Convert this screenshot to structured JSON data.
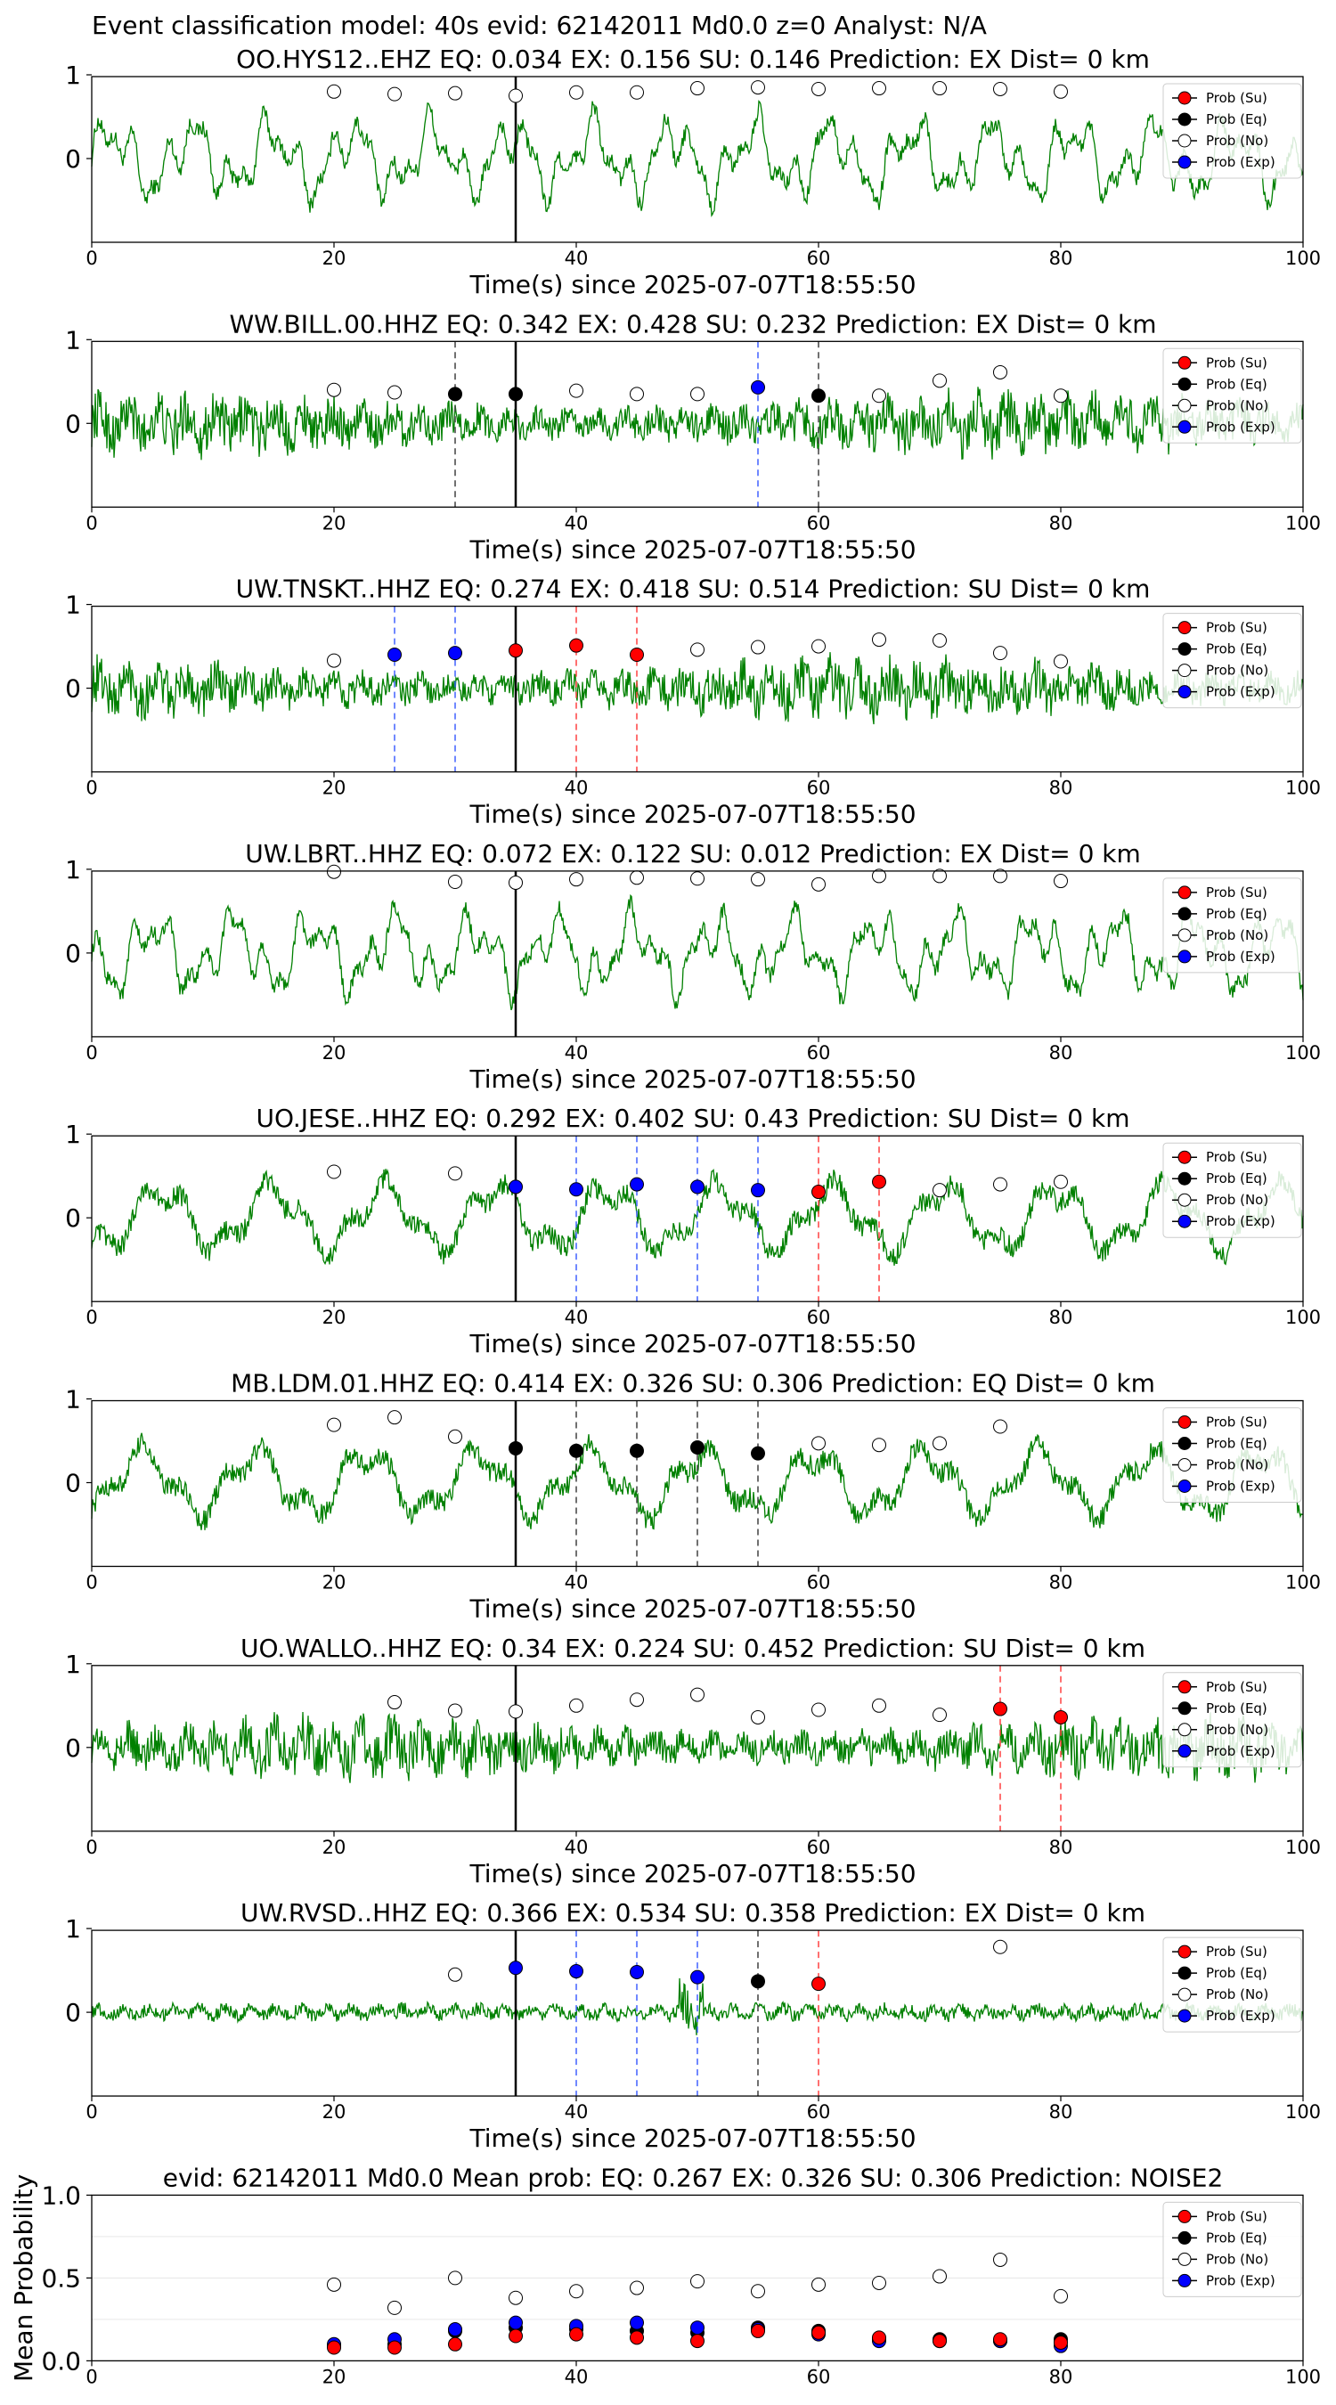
{
  "suptitle": "Event classification model: 40s evid: 62142011 Md0.0 z=0 Analyst: N/A",
  "legend": [
    {
      "label": "Prob (Su)",
      "fill": "#ff0000"
    },
    {
      "label": "Prob (Eq)",
      "fill": "#000000"
    },
    {
      "label": "Prob (No)",
      "fill": "#ffffff"
    },
    {
      "label": "Prob (Exp)",
      "fill": "#0000ff"
    }
  ],
  "colors": {
    "waveform": "#008000",
    "su": "#ff0000",
    "eq": "#000000",
    "no": "#ffffff",
    "exp": "#0000ff",
    "dashed_su": "#ff4040",
    "dashed_exp": "#4060ff",
    "dashed_eq": "#404040"
  },
  "chart_data": [
    {
      "type": "scatter",
      "title": "OO.HYS12..EHZ   EQ: 0.034  EX: 0.156  SU: 0.146   Prediction: EX    Dist= 0 km",
      "xlabel": "Time(s) since 2025-07-07T18:55:50",
      "xlim": [
        0,
        100
      ],
      "xticks": [
        "0",
        "20",
        "40",
        "60",
        "80",
        "100"
      ],
      "yticks": [
        "1",
        "0"
      ],
      "onset_time": 35,
      "waveform_style": "smooth",
      "picks": [],
      "probability_points": [
        {
          "time": 20,
          "class": "No",
          "value": 0.8
        },
        {
          "time": 25,
          "class": "No",
          "value": 0.77
        },
        {
          "time": 30,
          "class": "No",
          "value": 0.78
        },
        {
          "time": 35,
          "class": "No",
          "value": 0.75
        },
        {
          "time": 40,
          "class": "No",
          "value": 0.79
        },
        {
          "time": 45,
          "class": "No",
          "value": 0.79
        },
        {
          "time": 50,
          "class": "No",
          "value": 0.84
        },
        {
          "time": 55,
          "class": "No",
          "value": 0.85
        },
        {
          "time": 60,
          "class": "No",
          "value": 0.83
        },
        {
          "time": 65,
          "class": "No",
          "value": 0.84
        },
        {
          "time": 70,
          "class": "No",
          "value": 0.84
        },
        {
          "time": 75,
          "class": "No",
          "value": 0.83
        },
        {
          "time": 80,
          "class": "No",
          "value": 0.8
        }
      ]
    },
    {
      "type": "scatter",
      "title": "WW.BILL.00.HHZ   EQ: 0.342  EX: 0.428  SU: 0.232   Prediction: EX    Dist= 0 km",
      "xlabel": "Time(s) since 2025-07-07T18:55:50",
      "xlim": [
        0,
        100
      ],
      "xticks": [
        "0",
        "20",
        "40",
        "60",
        "80",
        "100"
      ],
      "yticks": [
        "1",
        "0"
      ],
      "onset_time": 35,
      "waveform_style": "dense",
      "picks": [
        {
          "time": 30,
          "class": "Eq"
        },
        {
          "time": 55,
          "class": "Exp"
        },
        {
          "time": 60,
          "class": "Eq"
        }
      ],
      "probability_points": [
        {
          "time": 20,
          "class": "No",
          "value": 0.4
        },
        {
          "time": 25,
          "class": "No",
          "value": 0.37
        },
        {
          "time": 30,
          "class": "Eq",
          "value": 0.35
        },
        {
          "time": 35,
          "class": "Eq",
          "value": 0.35
        },
        {
          "time": 40,
          "class": "No",
          "value": 0.39
        },
        {
          "time": 45,
          "class": "No",
          "value": 0.35
        },
        {
          "time": 50,
          "class": "No",
          "value": 0.35
        },
        {
          "time": 55,
          "class": "Exp",
          "value": 0.43
        },
        {
          "time": 60,
          "class": "Eq",
          "value": 0.33
        },
        {
          "time": 65,
          "class": "No",
          "value": 0.33
        },
        {
          "time": 70,
          "class": "No",
          "value": 0.51
        },
        {
          "time": 75,
          "class": "No",
          "value": 0.61
        },
        {
          "time": 80,
          "class": "No",
          "value": 0.33
        }
      ]
    },
    {
      "type": "scatter",
      "title": "UW.TNSKT..HHZ   EQ: 0.274  EX: 0.418  SU: 0.514   Prediction: SU    Dist= 0 km",
      "xlabel": "Time(s) since 2025-07-07T18:55:50",
      "xlim": [
        0,
        100
      ],
      "xticks": [
        "0",
        "20",
        "40",
        "60",
        "80",
        "100"
      ],
      "yticks": [
        "1",
        "0"
      ],
      "onset_time": 35,
      "waveform_style": "dense",
      "picks": [
        {
          "time": 25,
          "class": "Exp"
        },
        {
          "time": 30,
          "class": "Exp"
        },
        {
          "time": 40,
          "class": "Su"
        },
        {
          "time": 45,
          "class": "Su"
        }
      ],
      "probability_points": [
        {
          "time": 20,
          "class": "No",
          "value": 0.33
        },
        {
          "time": 25,
          "class": "Exp",
          "value": 0.4
        },
        {
          "time": 30,
          "class": "Exp",
          "value": 0.42
        },
        {
          "time": 35,
          "class": "Su",
          "value": 0.45
        },
        {
          "time": 40,
          "class": "Su",
          "value": 0.51
        },
        {
          "time": 45,
          "class": "Su",
          "value": 0.4
        },
        {
          "time": 50,
          "class": "No",
          "value": 0.46
        },
        {
          "time": 55,
          "class": "No",
          "value": 0.49
        },
        {
          "time": 60,
          "class": "No",
          "value": 0.5
        },
        {
          "time": 65,
          "class": "No",
          "value": 0.58
        },
        {
          "time": 70,
          "class": "No",
          "value": 0.57
        },
        {
          "time": 75,
          "class": "No",
          "value": 0.42
        },
        {
          "time": 80,
          "class": "No",
          "value": 0.32
        }
      ]
    },
    {
      "type": "scatter",
      "title": "UW.LBRT..HHZ   EQ: 0.072  EX: 0.122  SU: 0.012   Prediction: EX    Dist= 0 km",
      "xlabel": "Time(s) since 2025-07-07T18:55:50",
      "xlim": [
        0,
        100
      ],
      "xticks": [
        "0",
        "20",
        "40",
        "60",
        "80",
        "100"
      ],
      "yticks": [
        "1",
        "0"
      ],
      "onset_time": 35,
      "waveform_style": "smooth",
      "picks": [],
      "probability_points": [
        {
          "time": 20,
          "class": "No",
          "value": 0.97
        },
        {
          "time": 30,
          "class": "No",
          "value": 0.85
        },
        {
          "time": 35,
          "class": "No",
          "value": 0.84
        },
        {
          "time": 40,
          "class": "No",
          "value": 0.88
        },
        {
          "time": 45,
          "class": "No",
          "value": 0.9
        },
        {
          "time": 50,
          "class": "No",
          "value": 0.89
        },
        {
          "time": 55,
          "class": "No",
          "value": 0.88
        },
        {
          "time": 60,
          "class": "No",
          "value": 0.82
        },
        {
          "time": 65,
          "class": "No",
          "value": 0.92
        },
        {
          "time": 70,
          "class": "No",
          "value": 0.92
        },
        {
          "time": 75,
          "class": "No",
          "value": 0.92
        },
        {
          "time": 80,
          "class": "No",
          "value": 0.86
        }
      ]
    },
    {
      "type": "scatter",
      "title": "UO.JESE..HHZ   EQ: 0.292  EX: 0.402  SU: 0.43   Prediction: SU    Dist= 0 km",
      "xlabel": "Time(s) since 2025-07-07T18:55:50",
      "xlim": [
        0,
        100
      ],
      "xticks": [
        "0",
        "20",
        "40",
        "60",
        "80",
        "100"
      ],
      "yticks": [
        "1",
        "0"
      ],
      "onset_time": 35,
      "waveform_style": "oscillating",
      "picks": [
        {
          "time": 40,
          "class": "Exp"
        },
        {
          "time": 45,
          "class": "Exp"
        },
        {
          "time": 50,
          "class": "Exp"
        },
        {
          "time": 55,
          "class": "Exp"
        },
        {
          "time": 60,
          "class": "Su"
        },
        {
          "time": 65,
          "class": "Su"
        }
      ],
      "probability_points": [
        {
          "time": 20,
          "class": "No",
          "value": 0.55
        },
        {
          "time": 30,
          "class": "No",
          "value": 0.53
        },
        {
          "time": 35,
          "class": "Exp",
          "value": 0.37
        },
        {
          "time": 40,
          "class": "Exp",
          "value": 0.34
        },
        {
          "time": 45,
          "class": "Exp",
          "value": 0.4
        },
        {
          "time": 50,
          "class": "Exp",
          "value": 0.37
        },
        {
          "time": 55,
          "class": "Exp",
          "value": 0.33
        },
        {
          "time": 60,
          "class": "Su",
          "value": 0.31
        },
        {
          "time": 65,
          "class": "Su",
          "value": 0.43
        },
        {
          "time": 70,
          "class": "No",
          "value": 0.33
        },
        {
          "time": 75,
          "class": "No",
          "value": 0.4
        },
        {
          "time": 80,
          "class": "No",
          "value": 0.43
        }
      ]
    },
    {
      "type": "scatter",
      "title": "MB.LDM.01.HHZ   EQ: 0.414  EX: 0.326  SU: 0.306   Prediction: EQ    Dist= 0 km",
      "xlabel": "Time(s) since 2025-07-07T18:55:50",
      "xlim": [
        0,
        100
      ],
      "xticks": [
        "0",
        "20",
        "40",
        "60",
        "80",
        "100"
      ],
      "yticks": [
        "1",
        "0"
      ],
      "onset_time": 35,
      "waveform_style": "oscillating",
      "picks": [
        {
          "time": 40,
          "class": "Eq"
        },
        {
          "time": 45,
          "class": "Eq"
        },
        {
          "time": 50,
          "class": "Eq"
        },
        {
          "time": 55,
          "class": "Eq"
        }
      ],
      "probability_points": [
        {
          "time": 20,
          "class": "No",
          "value": 0.69
        },
        {
          "time": 25,
          "class": "No",
          "value": 0.78
        },
        {
          "time": 30,
          "class": "No",
          "value": 0.55
        },
        {
          "time": 35,
          "class": "Eq",
          "value": 0.41
        },
        {
          "time": 40,
          "class": "Eq",
          "value": 0.38
        },
        {
          "time": 45,
          "class": "Eq",
          "value": 0.38
        },
        {
          "time": 50,
          "class": "Eq",
          "value": 0.42
        },
        {
          "time": 55,
          "class": "Eq",
          "value": 0.35
        },
        {
          "time": 60,
          "class": "No",
          "value": 0.47
        },
        {
          "time": 65,
          "class": "No",
          "value": 0.45
        },
        {
          "time": 70,
          "class": "No",
          "value": 0.47
        },
        {
          "time": 75,
          "class": "No",
          "value": 0.67
        }
      ]
    },
    {
      "type": "scatter",
      "title": "UO.WALLO..HHZ   EQ: 0.34  EX: 0.224  SU: 0.452   Prediction: SU    Dist= 0 km",
      "xlabel": "Time(s) since 2025-07-07T18:55:50",
      "xlim": [
        0,
        100
      ],
      "xticks": [
        "0",
        "20",
        "40",
        "60",
        "80",
        "100"
      ],
      "yticks": [
        "1",
        "0"
      ],
      "onset_time": 35,
      "waveform_style": "dense",
      "picks": [
        {
          "time": 75,
          "class": "Su"
        },
        {
          "time": 80,
          "class": "Su"
        }
      ],
      "probability_points": [
        {
          "time": 25,
          "class": "No",
          "value": 0.54
        },
        {
          "time": 30,
          "class": "No",
          "value": 0.44
        },
        {
          "time": 35,
          "class": "No",
          "value": 0.43
        },
        {
          "time": 40,
          "class": "No",
          "value": 0.5
        },
        {
          "time": 45,
          "class": "No",
          "value": 0.57
        },
        {
          "time": 50,
          "class": "No",
          "value": 0.63
        },
        {
          "time": 55,
          "class": "No",
          "value": 0.36
        },
        {
          "time": 60,
          "class": "No",
          "value": 0.45
        },
        {
          "time": 65,
          "class": "No",
          "value": 0.5
        },
        {
          "time": 70,
          "class": "No",
          "value": 0.39
        },
        {
          "time": 75,
          "class": "Su",
          "value": 0.46
        },
        {
          "time": 80,
          "class": "Su",
          "value": 0.36
        }
      ]
    },
    {
      "type": "scatter",
      "title": "UW.RVSD..HHZ   EQ: 0.366  EX: 0.534  SU: 0.358   Prediction: EX    Dist= 0 km",
      "xlabel": "Time(s) since 2025-07-07T18:55:50",
      "xlim": [
        0,
        100
      ],
      "xticks": [
        "0",
        "20",
        "40",
        "60",
        "80",
        "100"
      ],
      "yticks": [
        "1",
        "0"
      ],
      "onset_time": 35,
      "waveform_style": "quiet",
      "picks": [
        {
          "time": 40,
          "class": "Exp"
        },
        {
          "time": 45,
          "class": "Exp"
        },
        {
          "time": 50,
          "class": "Exp"
        },
        {
          "time": 55,
          "class": "Eq"
        },
        {
          "time": 60,
          "class": "Su"
        }
      ],
      "probability_points": [
        {
          "time": 30,
          "class": "No",
          "value": 0.45
        },
        {
          "time": 35,
          "class": "Exp",
          "value": 0.53
        },
        {
          "time": 40,
          "class": "Exp",
          "value": 0.49
        },
        {
          "time": 45,
          "class": "Exp",
          "value": 0.48
        },
        {
          "time": 50,
          "class": "Exp",
          "value": 0.42
        },
        {
          "time": 55,
          "class": "Eq",
          "value": 0.37
        },
        {
          "time": 60,
          "class": "Su",
          "value": 0.34
        },
        {
          "time": 75,
          "class": "No",
          "value": 0.78
        }
      ]
    },
    {
      "type": "scatter",
      "title": "evid: 62142011  Md0.0   Mean prob:    EQ: 0.267  EX: 0.326  SU: 0.306   Prediction: NOISE2",
      "xlabel": "",
      "ylabel": "Mean Probability",
      "xlim": [
        0,
        100
      ],
      "ylim": [
        0,
        1
      ],
      "xticks": [
        "0",
        "20",
        "40",
        "60",
        "80",
        "100"
      ],
      "yticks": [
        "1.0",
        "0.5",
        "0.0"
      ],
      "x": [
        20,
        25,
        30,
        35,
        40,
        45,
        50,
        55,
        60,
        65,
        70,
        75,
        80
      ],
      "series": [
        {
          "name": "Prob (Su)",
          "values": [
            0.08,
            0.08,
            0.1,
            0.15,
            0.16,
            0.14,
            0.12,
            0.18,
            0.17,
            0.14,
            0.12,
            0.13,
            0.11
          ]
        },
        {
          "name": "Prob (Eq)",
          "values": [
            0.09,
            0.1,
            0.18,
            0.2,
            0.19,
            0.18,
            0.17,
            0.2,
            0.18,
            0.13,
            0.13,
            0.12,
            0.13
          ]
        },
        {
          "name": "Prob (No)",
          "values": [
            0.46,
            0.32,
            0.5,
            0.38,
            0.42,
            0.44,
            0.48,
            0.42,
            0.46,
            0.47,
            0.51,
            0.61,
            0.39
          ]
        },
        {
          "name": "Prob (Exp)",
          "values": [
            0.1,
            0.13,
            0.19,
            0.23,
            0.21,
            0.23,
            0.2,
            0.19,
            0.16,
            0.12,
            0.12,
            0.12,
            0.09
          ]
        }
      ]
    }
  ]
}
